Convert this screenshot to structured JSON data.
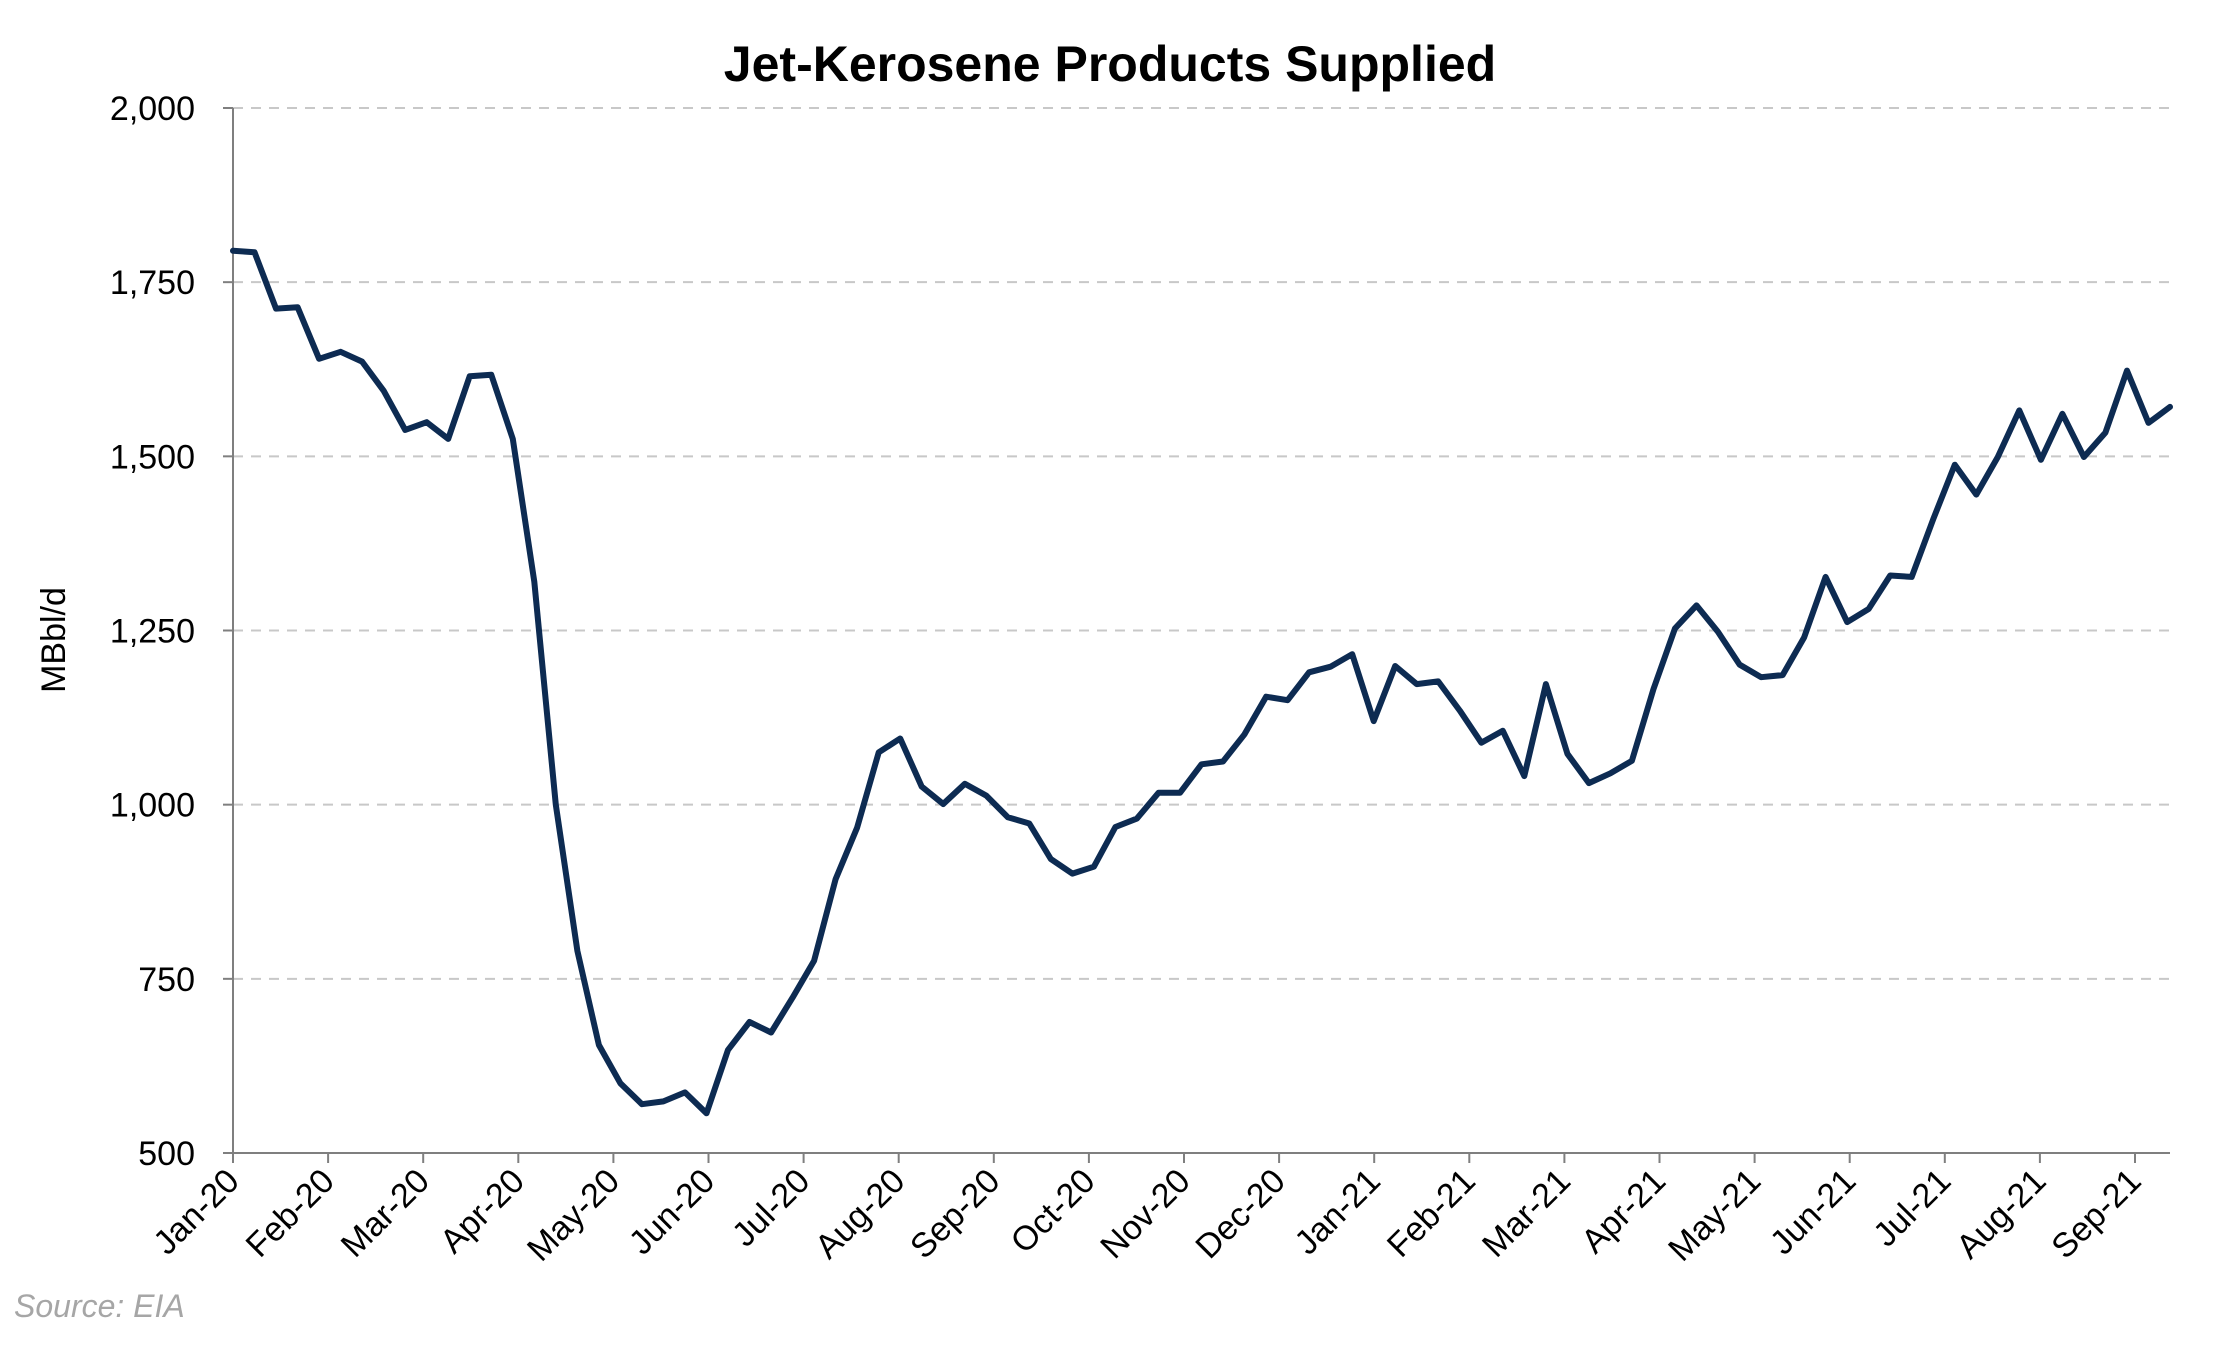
{
  "chart_data": {
    "type": "line",
    "title": "Jet-Kerosene Products Supplied",
    "ylabel": "MBbl/d",
    "xlabel": "",
    "ylim": [
      500,
      2000
    ],
    "yticks": [
      "500",
      "750",
      "1,000",
      "1,250",
      "1,500",
      "1,750",
      "2,000"
    ],
    "ytick_values": [
      500,
      750,
      1000,
      1250,
      1500,
      1750,
      2000
    ],
    "xtick_labels": [
      "Jan-20",
      "Feb-20",
      "Mar-20",
      "Apr-20",
      "May-20",
      "Jun-20",
      "Jul-20",
      "Aug-20",
      "Sep-20",
      "Oct-20",
      "Nov-20",
      "Dec-20",
      "Jan-21",
      "Feb-21",
      "Mar-21",
      "Apr-21",
      "May-21",
      "Jun-21",
      "Jul-21",
      "Aug-21",
      "Sep-21"
    ],
    "grid": "horizontal dashed",
    "line_color": "#0d2b52",
    "series": [
      {
        "values": [
          1795,
          1793,
          1712,
          1714,
          1640,
          1650,
          1636,
          1594,
          1538,
          1549,
          1525,
          1615,
          1617,
          1525,
          1320,
          1000,
          790,
          655,
          600,
          570,
          574,
          587,
          557,
          648,
          688,
          673,
          723,
          776,
          893,
          967,
          1075,
          1095,
          1026,
          1001,
          1030,
          1013,
          982,
          973,
          922,
          901,
          911,
          968,
          980,
          1017,
          1017,
          1058,
          1062,
          1101,
          1155,
          1150,
          1190,
          1198,
          1216,
          1120,
          1199,
          1173,
          1177,
          1135,
          1089,
          1106,
          1041,
          1173,
          1073,
          1031,
          1045,
          1063,
          1166,
          1253,
          1286,
          1248,
          1201,
          1183,
          1186,
          1240,
          1327,
          1262,
          1281,
          1329,
          1327,
          1410,
          1488,
          1445,
          1499,
          1566,
          1495,
          1561,
          1499,
          1534,
          1623,
          1548,
          1571
        ]
      }
    ]
  },
  "source_note": "Source: EIA"
}
